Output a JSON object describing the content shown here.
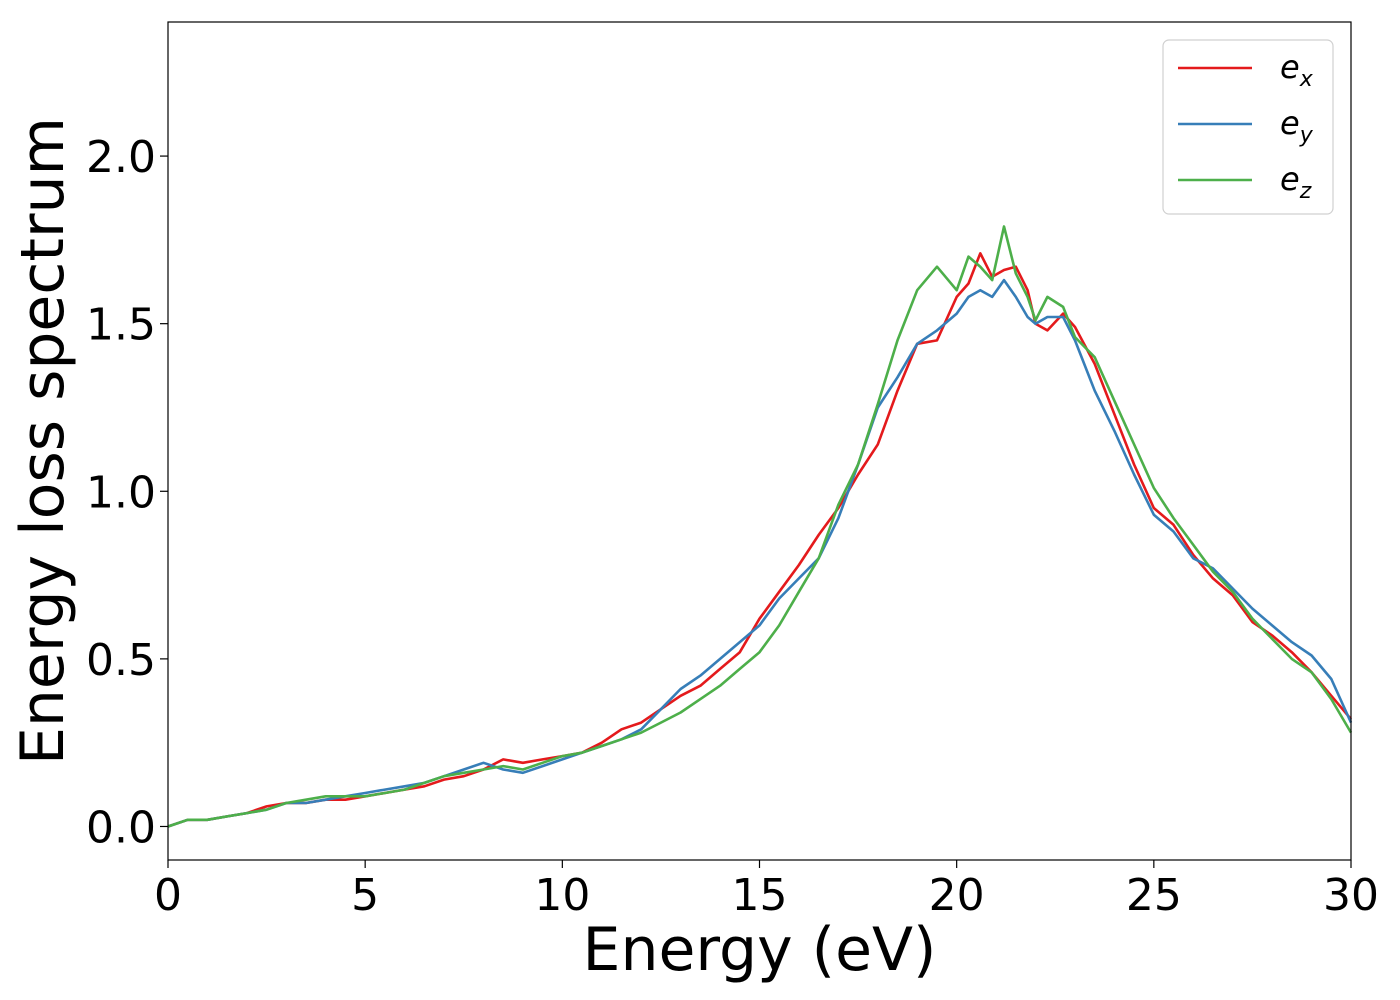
{
  "chart_data": {
    "type": "line",
    "xlabel": "Energy (eV)",
    "ylabel": "Energy loss spectrum",
    "xlim": [
      0,
      30
    ],
    "ylim": [
      -0.1,
      2.4
    ],
    "xticks": [
      "0",
      "5",
      "10",
      "15",
      "20",
      "25",
      "30"
    ],
    "yticks": [
      "0.0",
      "0.5",
      "1.0",
      "1.5",
      "2.0"
    ],
    "grid": false,
    "legend_position": "top-right",
    "series": [
      {
        "name": "e_x",
        "label_main": "e",
        "label_sub": "x",
        "color": "#e41a1c",
        "x": [
          0,
          0.5,
          1,
          1.5,
          2,
          2.5,
          3,
          3.5,
          4,
          4.5,
          5,
          5.5,
          6,
          6.5,
          7,
          7.5,
          8,
          8.5,
          9,
          9.5,
          10,
          10.5,
          11,
          11.5,
          12,
          12.5,
          13,
          13.5,
          14,
          14.5,
          15,
          15.5,
          16,
          16.5,
          17,
          17.5,
          18,
          18.5,
          19,
          19.5,
          20,
          20.3,
          20.6,
          20.9,
          21.2,
          21.5,
          21.8,
          22,
          22.3,
          22.7,
          23,
          23.5,
          24,
          24.5,
          25,
          25.5,
          26,
          26.5,
          27,
          27.5,
          28,
          28.5,
          29,
          29.5,
          30
        ],
        "y": [
          0.0,
          0.02,
          0.02,
          0.03,
          0.04,
          0.06,
          0.07,
          0.07,
          0.08,
          0.08,
          0.09,
          0.1,
          0.11,
          0.12,
          0.14,
          0.15,
          0.17,
          0.2,
          0.19,
          0.2,
          0.21,
          0.22,
          0.25,
          0.29,
          0.31,
          0.35,
          0.39,
          0.42,
          0.47,
          0.52,
          0.62,
          0.7,
          0.78,
          0.87,
          0.95,
          1.05,
          1.14,
          1.3,
          1.44,
          1.45,
          1.58,
          1.62,
          1.71,
          1.64,
          1.66,
          1.67,
          1.6,
          1.5,
          1.48,
          1.53,
          1.49,
          1.38,
          1.23,
          1.08,
          0.95,
          0.9,
          0.81,
          0.74,
          0.69,
          0.61,
          0.57,
          0.52,
          0.46,
          0.39,
          0.32
        ]
      },
      {
        "name": "e_y",
        "label_main": "e",
        "label_sub": "y",
        "color": "#377eb8",
        "x": [
          0,
          0.5,
          1,
          1.5,
          2,
          2.5,
          3,
          3.5,
          4,
          4.5,
          5,
          5.5,
          6,
          6.5,
          7,
          7.5,
          8,
          8.5,
          9,
          9.5,
          10,
          10.5,
          11,
          11.5,
          12,
          12.5,
          13,
          13.5,
          14,
          14.5,
          15,
          15.5,
          16,
          16.5,
          17,
          17.5,
          18,
          18.5,
          19,
          19.5,
          20,
          20.3,
          20.6,
          20.9,
          21.2,
          21.5,
          21.8,
          22,
          22.3,
          22.7,
          23,
          23.5,
          24,
          24.5,
          25,
          25.5,
          26,
          26.5,
          27,
          27.5,
          28,
          28.5,
          29,
          29.5,
          30
        ],
        "y": [
          0.0,
          0.02,
          0.02,
          0.03,
          0.04,
          0.05,
          0.07,
          0.07,
          0.08,
          0.09,
          0.1,
          0.11,
          0.12,
          0.13,
          0.15,
          0.17,
          0.19,
          0.17,
          0.16,
          0.18,
          0.2,
          0.22,
          0.24,
          0.26,
          0.29,
          0.35,
          0.41,
          0.45,
          0.5,
          0.55,
          0.6,
          0.68,
          0.74,
          0.8,
          0.92,
          1.08,
          1.25,
          1.34,
          1.44,
          1.48,
          1.53,
          1.58,
          1.6,
          1.58,
          1.63,
          1.58,
          1.52,
          1.5,
          1.52,
          1.52,
          1.45,
          1.3,
          1.18,
          1.05,
          0.93,
          0.88,
          0.8,
          0.77,
          0.71,
          0.65,
          0.6,
          0.55,
          0.51,
          0.44,
          0.31
        ]
      },
      {
        "name": "e_z",
        "label_main": "e",
        "label_sub": "z",
        "color": "#4daf4a",
        "x": [
          0,
          0.5,
          1,
          1.5,
          2,
          2.5,
          3,
          3.5,
          4,
          4.5,
          5,
          5.5,
          6,
          6.5,
          7,
          7.5,
          8,
          8.5,
          9,
          9.5,
          10,
          10.5,
          11,
          11.5,
          12,
          12.5,
          13,
          13.5,
          14,
          14.5,
          15,
          15.5,
          16,
          16.5,
          17,
          17.5,
          18,
          18.5,
          19,
          19.5,
          20,
          20.3,
          20.6,
          20.9,
          21.2,
          21.5,
          21.8,
          22,
          22.3,
          22.7,
          23,
          23.5,
          24,
          24.5,
          25,
          25.5,
          26,
          26.5,
          27,
          27.5,
          28,
          28.5,
          29,
          29.5,
          30
        ],
        "y": [
          0.0,
          0.02,
          0.02,
          0.03,
          0.04,
          0.05,
          0.07,
          0.08,
          0.09,
          0.09,
          0.09,
          0.1,
          0.11,
          0.13,
          0.15,
          0.16,
          0.17,
          0.18,
          0.17,
          0.19,
          0.21,
          0.22,
          0.24,
          0.26,
          0.28,
          0.31,
          0.34,
          0.38,
          0.42,
          0.47,
          0.52,
          0.6,
          0.7,
          0.8,
          0.96,
          1.08,
          1.26,
          1.45,
          1.6,
          1.67,
          1.6,
          1.7,
          1.67,
          1.63,
          1.79,
          1.65,
          1.58,
          1.51,
          1.58,
          1.55,
          1.46,
          1.4,
          1.27,
          1.14,
          1.01,
          0.92,
          0.84,
          0.76,
          0.7,
          0.62,
          0.56,
          0.5,
          0.46,
          0.38,
          0.28
        ]
      }
    ]
  }
}
